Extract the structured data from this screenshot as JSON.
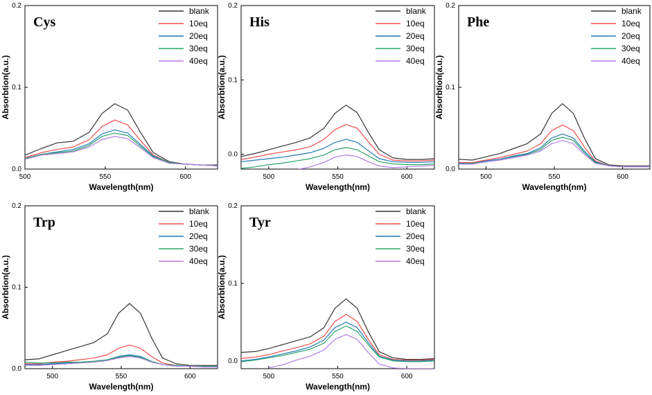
{
  "colors": {
    "blank": "#333333",
    "10eq": "#ef4b4b",
    "20eq": "#1f77b4",
    "30eq": "#2aa36b",
    "40eq": "#b07ce0"
  },
  "chart_data": [
    {
      "type": "line",
      "title": "Cys",
      "xlabel": "Wavelength(nm)",
      "ylabel": "Absorbtion(a.u.)",
      "xlim": [
        500,
        620
      ],
      "ylim": [
        0,
        0.2
      ],
      "xticks": [
        "500",
        "550",
        "600"
      ],
      "yticks": [
        "0.0",
        "0.1",
        "0.2"
      ],
      "legend": [
        "blank",
        "10eq",
        "20eq",
        "30eq",
        "40eq"
      ],
      "series": [
        {
          "name": "blank",
          "x": [
            500,
            510,
            520,
            530,
            540,
            548,
            556,
            564,
            572,
            580,
            590,
            600,
            610,
            620
          ],
          "values": [
            0.017,
            0.025,
            0.032,
            0.034,
            0.045,
            0.068,
            0.08,
            0.072,
            0.045,
            0.02,
            0.009,
            0.006,
            0.005,
            0.005
          ]
        },
        {
          "name": "10eq",
          "x": [
            500,
            510,
            520,
            530,
            540,
            548,
            556,
            564,
            572,
            580,
            590,
            600,
            610,
            620
          ],
          "values": [
            0.014,
            0.02,
            0.024,
            0.027,
            0.036,
            0.052,
            0.06,
            0.054,
            0.035,
            0.017,
            0.008,
            0.006,
            0.005,
            0.004
          ]
        },
        {
          "name": "20eq",
          "x": [
            500,
            510,
            520,
            530,
            540,
            548,
            556,
            564,
            572,
            580,
            590,
            600,
            610,
            620
          ],
          "values": [
            0.013,
            0.018,
            0.021,
            0.024,
            0.031,
            0.043,
            0.048,
            0.044,
            0.03,
            0.016,
            0.008,
            0.006,
            0.005,
            0.004
          ]
        },
        {
          "name": "30eq",
          "x": [
            500,
            510,
            520,
            530,
            540,
            548,
            556,
            564,
            572,
            580,
            590,
            600,
            610,
            620
          ],
          "values": [
            0.013,
            0.018,
            0.02,
            0.022,
            0.029,
            0.04,
            0.044,
            0.041,
            0.028,
            0.015,
            0.008,
            0.006,
            0.005,
            0.004
          ]
        },
        {
          "name": "40eq",
          "x": [
            500,
            510,
            520,
            530,
            540,
            548,
            556,
            564,
            572,
            580,
            590,
            600,
            610,
            620
          ],
          "values": [
            0.012,
            0.017,
            0.019,
            0.021,
            0.027,
            0.036,
            0.04,
            0.037,
            0.026,
            0.014,
            0.007,
            0.006,
            0.005,
            0.004
          ]
        }
      ]
    },
    {
      "type": "line",
      "title": "His",
      "xlabel": "Wavelength(nm)",
      "ylabel": "Absorbtion(a.u.)",
      "xlim": [
        480,
        620
      ],
      "ylim": [
        -0.02,
        0.2
      ],
      "xticks": [
        "500",
        "550",
        "600"
      ],
      "yticks": [
        "0.0",
        "0.1",
        "0.2"
      ],
      "legend": [
        "blank",
        "10eq",
        "20eq",
        "30eq",
        "40eq"
      ],
      "series": [
        {
          "name": "blank",
          "x": [
            480,
            490,
            500,
            510,
            520,
            530,
            540,
            548,
            556,
            564,
            572,
            580,
            590,
            600,
            610,
            620
          ],
          "values": [
            -0.003,
            0.001,
            0.006,
            0.011,
            0.016,
            0.022,
            0.035,
            0.055,
            0.066,
            0.056,
            0.03,
            0.006,
            -0.005,
            -0.007,
            -0.007,
            -0.006
          ]
        },
        {
          "name": "10eq",
          "x": [
            480,
            490,
            500,
            510,
            520,
            530,
            540,
            548,
            556,
            564,
            572,
            580,
            590,
            600,
            610,
            620
          ],
          "values": [
            -0.007,
            -0.004,
            0.0,
            0.003,
            0.006,
            0.01,
            0.02,
            0.033,
            0.04,
            0.035,
            0.017,
            0.0,
            -0.008,
            -0.009,
            -0.009,
            -0.008
          ]
        },
        {
          "name": "20eq",
          "x": [
            480,
            490,
            500,
            510,
            520,
            530,
            540,
            548,
            556,
            564,
            572,
            580,
            590,
            600,
            610,
            620
          ],
          "values": [
            -0.01,
            -0.008,
            -0.006,
            -0.004,
            -0.001,
            0.002,
            0.008,
            0.016,
            0.02,
            0.016,
            0.005,
            -0.006,
            -0.01,
            -0.011,
            -0.011,
            -0.01
          ]
        },
        {
          "name": "30eq",
          "x": [
            480,
            490,
            500,
            510,
            520,
            530,
            540,
            548,
            556,
            564,
            572,
            580,
            590,
            600,
            610,
            620
          ],
          "values": [
            -0.019,
            -0.017,
            -0.014,
            -0.012,
            -0.009,
            -0.006,
            -0.001,
            0.006,
            0.009,
            0.006,
            -0.002,
            -0.01,
            -0.013,
            -0.014,
            -0.014,
            -0.013
          ]
        },
        {
          "name": "40eq",
          "x": [
            490,
            500,
            510,
            520,
            530,
            540,
            548,
            556,
            564,
            572,
            580,
            590,
            600,
            610,
            620
          ],
          "values": [
            -0.03,
            -0.026,
            -0.024,
            -0.021,
            -0.017,
            -0.011,
            -0.004,
            -0.001,
            -0.003,
            -0.01,
            -0.016,
            -0.018,
            -0.017,
            -0.016,
            -0.015
          ]
        }
      ]
    },
    {
      "type": "line",
      "title": "Phe",
      "xlabel": "Wavelength(nm)",
      "ylabel": "Absorbtion(a.u.)",
      "xlim": [
        480,
        620
      ],
      "ylim": [
        0,
        0.2
      ],
      "xticks": [
        "500",
        "550",
        "600"
      ],
      "yticks": [
        "0.0",
        "0.1",
        "0.2"
      ],
      "legend": [
        "blank",
        "10eq",
        "20eq",
        "30eq",
        "40eq"
      ],
      "series": [
        {
          "name": "blank",
          "x": [
            480,
            490,
            500,
            510,
            520,
            530,
            540,
            548,
            556,
            564,
            572,
            580,
            590,
            600,
            610,
            620
          ],
          "values": [
            0.012,
            0.011,
            0.015,
            0.019,
            0.025,
            0.031,
            0.043,
            0.068,
            0.08,
            0.068,
            0.038,
            0.013,
            0.005,
            0.004,
            0.004,
            0.004
          ]
        },
        {
          "name": "10eq",
          "x": [
            480,
            490,
            500,
            510,
            520,
            530,
            540,
            548,
            556,
            564,
            572,
            580,
            590,
            600,
            610,
            620
          ],
          "values": [
            0.008,
            0.008,
            0.011,
            0.014,
            0.018,
            0.022,
            0.031,
            0.047,
            0.054,
            0.047,
            0.027,
            0.01,
            0.004,
            0.003,
            0.003,
            0.003
          ]
        },
        {
          "name": "20eq",
          "x": [
            480,
            490,
            500,
            510,
            520,
            530,
            540,
            548,
            556,
            564,
            572,
            580,
            590,
            600,
            610,
            620
          ],
          "values": [
            0.007,
            0.007,
            0.01,
            0.012,
            0.016,
            0.019,
            0.026,
            0.038,
            0.043,
            0.038,
            0.022,
            0.009,
            0.004,
            0.003,
            0.003,
            0.003
          ]
        },
        {
          "name": "30eq",
          "x": [
            480,
            490,
            500,
            510,
            520,
            530,
            540,
            548,
            556,
            564,
            572,
            580,
            590,
            600,
            610,
            620
          ],
          "values": [
            0.006,
            0.007,
            0.009,
            0.011,
            0.015,
            0.018,
            0.024,
            0.035,
            0.039,
            0.035,
            0.02,
            0.008,
            0.004,
            0.003,
            0.003,
            0.003
          ]
        },
        {
          "name": "40eq",
          "x": [
            480,
            490,
            500,
            510,
            520,
            530,
            540,
            548,
            556,
            564,
            572,
            580,
            590,
            600,
            610,
            620
          ],
          "values": [
            0.006,
            0.006,
            0.009,
            0.011,
            0.014,
            0.017,
            0.022,
            0.031,
            0.035,
            0.031,
            0.018,
            0.007,
            0.004,
            0.003,
            0.003,
            0.003
          ]
        }
      ]
    },
    {
      "type": "line",
      "title": "Trp",
      "xlabel": "Wavelength(nm)",
      "ylabel": "Absorbtion(a.u.)",
      "xlim": [
        480,
        620
      ],
      "ylim": [
        0,
        0.2
      ],
      "xticks": [
        "500",
        "550",
        "600"
      ],
      "yticks": [
        "0.0",
        "0.1",
        "0.2"
      ],
      "legend": [
        "blank",
        "10eq",
        "20eq",
        "30eq",
        "40eq"
      ],
      "series": [
        {
          "name": "blank",
          "x": [
            480,
            490,
            500,
            510,
            520,
            530,
            540,
            548,
            556,
            564,
            572,
            580,
            590,
            600,
            610,
            620
          ],
          "values": [
            0.011,
            0.012,
            0.017,
            0.022,
            0.027,
            0.032,
            0.043,
            0.068,
            0.08,
            0.068,
            0.038,
            0.013,
            0.006,
            0.004,
            0.004,
            0.004
          ]
        },
        {
          "name": "10eq",
          "x": [
            480,
            490,
            500,
            510,
            520,
            530,
            540,
            548,
            556,
            564,
            572,
            580,
            590,
            600,
            610,
            620
          ],
          "values": [
            0.006,
            0.006,
            0.008,
            0.009,
            0.011,
            0.013,
            0.017,
            0.025,
            0.029,
            0.025,
            0.015,
            0.007,
            0.004,
            0.003,
            0.003,
            0.003
          ]
        },
        {
          "name": "20eq",
          "x": [
            480,
            490,
            500,
            510,
            520,
            530,
            540,
            548,
            556,
            564,
            572,
            580,
            590,
            600,
            610,
            620
          ],
          "values": [
            0.005,
            0.005,
            0.006,
            0.007,
            0.008,
            0.009,
            0.011,
            0.015,
            0.017,
            0.015,
            0.009,
            0.005,
            0.004,
            0.003,
            0.003,
            0.003
          ]
        },
        {
          "name": "30eq",
          "x": [
            480,
            490,
            500,
            510,
            520,
            530,
            540,
            548,
            556,
            564,
            572,
            580,
            590,
            600,
            610,
            620
          ],
          "values": [
            0.008,
            0.007,
            0.007,
            0.008,
            0.008,
            0.009,
            0.011,
            0.014,
            0.016,
            0.014,
            0.009,
            0.005,
            0.004,
            0.003,
            0.003,
            0.003
          ]
        },
        {
          "name": "40eq",
          "x": [
            480,
            490,
            500,
            510,
            520,
            530,
            540,
            548,
            556,
            564,
            572,
            580,
            590,
            600,
            610,
            620
          ],
          "values": [
            0.004,
            0.004,
            0.005,
            0.006,
            0.007,
            0.008,
            0.01,
            0.013,
            0.015,
            0.013,
            0.008,
            0.005,
            0.003,
            0.003,
            0.002,
            0.002
          ]
        }
      ]
    },
    {
      "type": "line",
      "title": "Tyr",
      "xlabel": "Wavelength(nm)",
      "ylabel": "Absorbtion(a.u.)",
      "xlim": [
        480,
        620
      ],
      "ylim": [
        -0.01,
        0.2
      ],
      "xticks": [
        "500",
        "550",
        "600"
      ],
      "yticks": [
        "0.0",
        "0.1",
        "0.2"
      ],
      "legend": [
        "blank",
        "10eq",
        "20eq",
        "30eq",
        "40eq"
      ],
      "series": [
        {
          "name": "blank",
          "x": [
            480,
            490,
            500,
            510,
            520,
            530,
            540,
            548,
            556,
            564,
            572,
            580,
            590,
            600,
            610,
            620
          ],
          "values": [
            0.011,
            0.012,
            0.016,
            0.021,
            0.026,
            0.031,
            0.043,
            0.068,
            0.08,
            0.068,
            0.038,
            0.012,
            0.004,
            0.002,
            0.002,
            0.003
          ]
        },
        {
          "name": "10eq",
          "x": [
            480,
            490,
            500,
            510,
            520,
            530,
            540,
            548,
            556,
            564,
            572,
            580,
            590,
            600,
            610,
            620
          ],
          "values": [
            0.003,
            0.005,
            0.008,
            0.013,
            0.017,
            0.022,
            0.032,
            0.051,
            0.06,
            0.051,
            0.028,
            0.008,
            0.002,
            0.001,
            0.001,
            0.002
          ]
        },
        {
          "name": "20eq",
          "x": [
            480,
            490,
            500,
            510,
            520,
            530,
            540,
            548,
            556,
            564,
            572,
            580,
            590,
            600,
            610,
            620
          ],
          "values": [
            0.0,
            0.002,
            0.005,
            0.009,
            0.013,
            0.018,
            0.027,
            0.043,
            0.05,
            0.043,
            0.024,
            0.006,
            0.001,
            0.0,
            0.0,
            0.001
          ]
        },
        {
          "name": "30eq",
          "x": [
            480,
            490,
            500,
            510,
            520,
            530,
            540,
            548,
            556,
            564,
            572,
            580,
            590,
            600,
            610,
            620
          ],
          "values": [
            -0.001,
            0.001,
            0.004,
            0.007,
            0.011,
            0.015,
            0.023,
            0.038,
            0.045,
            0.038,
            0.021,
            0.005,
            0.0,
            -0.001,
            -0.001,
            0.0
          ]
        },
        {
          "name": "40eq",
          "x": [
            500,
            510,
            520,
            530,
            540,
            548,
            556,
            564,
            572,
            580,
            590,
            600,
            610,
            620
          ],
          "values": [
            -0.009,
            -0.005,
            0.001,
            0.006,
            0.014,
            0.028,
            0.034,
            0.028,
            0.011,
            -0.004,
            -0.009,
            -0.01,
            -0.01,
            -0.01
          ]
        }
      ]
    }
  ]
}
